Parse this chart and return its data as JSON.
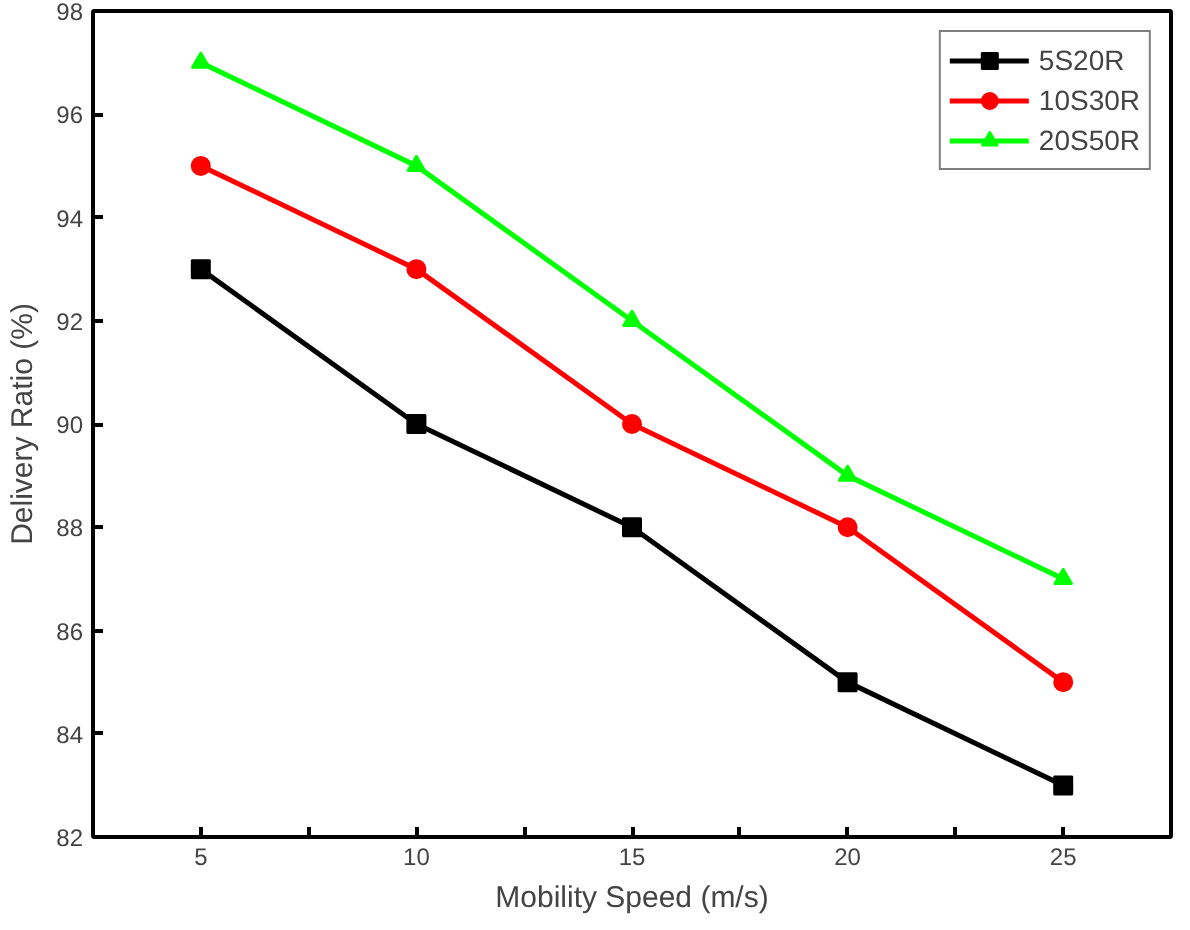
{
  "chart_data": {
    "type": "line",
    "xlabel": "Mobility Speed (m/s)",
    "ylabel": "Delivery Ratio (%)",
    "x": [
      5,
      10,
      15,
      20,
      25
    ],
    "series": [
      {
        "name": "5S20R",
        "color": "#000000",
        "marker": "square",
        "values": [
          93,
          90,
          88,
          85,
          83
        ]
      },
      {
        "name": "10S30R",
        "color": "#ff0000",
        "marker": "circle",
        "values": [
          95,
          93,
          90,
          88,
          85
        ]
      },
      {
        "name": "20S50R",
        "color": "#00ff00",
        "marker": "triangle",
        "values": [
          97,
          95,
          92,
          89,
          87
        ]
      }
    ],
    "xlim": [
      2.5,
      27.5
    ],
    "ylim": [
      82,
      98
    ],
    "xticks": [
      5,
      {
        "value": 7.5,
        "label": null
      },
      10,
      {
        "value": 12.5,
        "label": null
      },
      15,
      {
        "value": 17.5,
        "label": null
      },
      20,
      {
        "value": 22.5,
        "label": null
      },
      25
    ],
    "yticks": [
      82,
      84,
      86,
      88,
      90,
      92,
      94,
      96,
      98
    ],
    "grid": false,
    "legend": "top right",
    "line_style": "solid"
  }
}
